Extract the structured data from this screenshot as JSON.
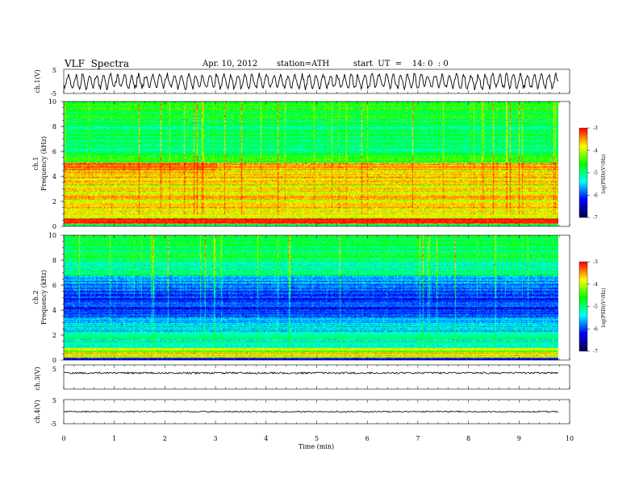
{
  "header": {
    "title": "VLF  Spectra",
    "date": "Apr. 10, 2012",
    "station": "station=ATH",
    "start": "start  UT  =    14: 0  : 0"
  },
  "chart_data": [
    {
      "type": "line",
      "id": "ch1",
      "ylabel": "ch.1(V)",
      "ylim": [
        -5,
        5
      ],
      "yticks": [
        "5",
        "-5"
      ],
      "xlim": [
        0,
        10
      ]
    },
    {
      "type": "heatmap",
      "id": "ch1-spectrogram",
      "ylabel_line1": "ch.1",
      "ylabel_line2": "Frequency  (kHz)",
      "ylim": [
        0,
        10
      ],
      "yticks": [
        "0",
        "2",
        "4",
        "6",
        "8",
        "10"
      ],
      "xlim": [
        0,
        9.8
      ],
      "colorbar": {
        "label": "log(PSD)(V²/Hz)",
        "range": [
          -7,
          -3
        ],
        "ticks": [
          "-3",
          "-4",
          "-5",
          "-6",
          "-7"
        ]
      }
    },
    {
      "type": "heatmap",
      "id": "ch2-spectrogram",
      "ylabel_line1": "ch.2",
      "ylabel_line2": "Frequency  (kHz)",
      "ylim": [
        0,
        10
      ],
      "yticks": [
        "0",
        "2",
        "4",
        "6",
        "8",
        "10"
      ],
      "xlim": [
        0,
        9.8
      ],
      "colorbar": {
        "label": "log(PSD)(V²/Hz)",
        "range": [
          -7,
          -3
        ],
        "ticks": [
          "-3",
          "-4",
          "-5",
          "-6",
          "-7"
        ]
      }
    },
    {
      "type": "line",
      "id": "ch3",
      "ylabel": "ch.3(V)",
      "ylim": [
        -5,
        5
      ],
      "yticks": [
        "5"
      ],
      "xlim": [
        0,
        10
      ]
    },
    {
      "type": "line",
      "id": "ch4",
      "ylabel": "ch.4(V)",
      "ylim": [
        -5,
        5
      ],
      "yticks": [
        "5",
        "-5"
      ],
      "xlim": [
        0,
        10
      ],
      "xlabel": "Time  (min)",
      "xticks": [
        "0",
        "1",
        "2",
        "3",
        "4",
        "5",
        "6",
        "7",
        "8",
        "9",
        "10"
      ]
    }
  ]
}
